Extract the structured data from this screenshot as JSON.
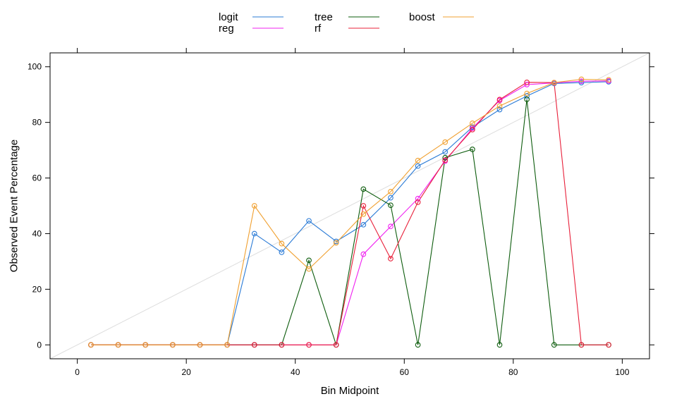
{
  "chart_data": {
    "type": "line",
    "xlabel": "Bin Midpoint",
    "ylabel": "Observed Event Percentage",
    "xlim": [
      -5,
      105
    ],
    "ylim": [
      -5,
      105
    ],
    "x_ticks": [
      0,
      20,
      40,
      60,
      80,
      100
    ],
    "y_ticks": [
      0,
      20,
      40,
      60,
      80,
      100
    ],
    "reference_line": {
      "x": [
        -5,
        105
      ],
      "y": [
        -5,
        105
      ],
      "color": "#dddddd"
    },
    "grid": false,
    "legend_position": "top",
    "x": [
      2.5,
      7.5,
      12.5,
      17.5,
      22.5,
      27.5,
      32.5,
      37.5,
      42.5,
      47.5,
      52.5,
      57.5,
      62.5,
      67.5,
      72.5,
      77.5,
      82.5,
      87.5,
      92.5,
      97.5
    ],
    "series": [
      {
        "name": "logit",
        "color": "#2b7bd6",
        "values": [
          0,
          0,
          0,
          0,
          0,
          0,
          40,
          33.3,
          44.6,
          37.2,
          43.2,
          52.9,
          64.3,
          69.4,
          78.3,
          84.6,
          89.5,
          94.0,
          94.3,
          94.6
        ]
      },
      {
        "name": "reg",
        "color": "#f020f0",
        "values": [
          0,
          0,
          0,
          0,
          0,
          0,
          0,
          0,
          0,
          0,
          32.6,
          42.6,
          52.6,
          66.1,
          77.9,
          87.9,
          93.6,
          94.2,
          94.8,
          94.9
        ]
      },
      {
        "name": "tree",
        "color": "#0d5c0d",
        "values": [
          0,
          0,
          0,
          0,
          0,
          0,
          0,
          0,
          30.4,
          0,
          56.0,
          50.2,
          0,
          67.3,
          70.3,
          0,
          88.3,
          0,
          0,
          0
        ]
      },
      {
        "name": "rf",
        "color": "#e8203a",
        "values": [
          0,
          0,
          0,
          0,
          0,
          0,
          0,
          0,
          0,
          0,
          50.0,
          31.0,
          51.3,
          66.4,
          77.4,
          88.2,
          94.4,
          94.3,
          0,
          0
        ]
      },
      {
        "name": "boost",
        "color": "#f0a030",
        "values": [
          0,
          0,
          0,
          0,
          0,
          0,
          50.0,
          36.4,
          27.3,
          36.7,
          47.0,
          55.1,
          66.3,
          72.9,
          79.7,
          85.9,
          90.4,
          94.3,
          95.5,
          95.3
        ]
      }
    ]
  }
}
